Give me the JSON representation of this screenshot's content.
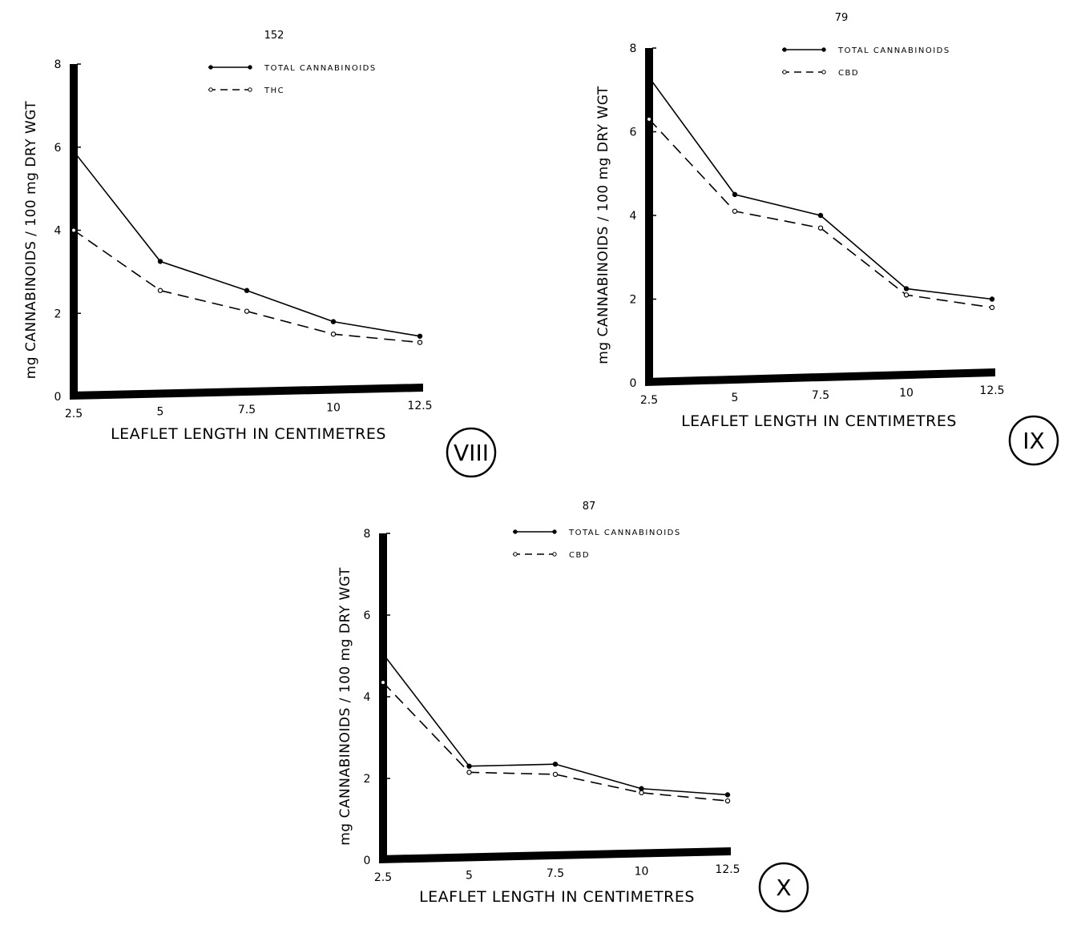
{
  "chart_data": [
    {
      "type": "line",
      "panel": "VIII",
      "sample": "152",
      "ylabel": "mg CANNABINOIDS / 100 mg DRY WGT",
      "xlabel": "LEAFLET LENGTH IN CENTIMETRES",
      "x": [
        2.5,
        5,
        7.5,
        10,
        12.5
      ],
      "x_ticks": [
        "2.5",
        "5",
        "7.5",
        "10",
        "12.5"
      ],
      "y_ticks": [
        "0",
        "2",
        "4",
        "6",
        "8"
      ],
      "ylim": [
        0,
        8
      ],
      "legend_position": "top-center",
      "series": [
        {
          "name": "TOTAL CANNABINOIDS",
          "style": "solid",
          "values": [
            5.9,
            3.25,
            2.55,
            1.8,
            1.45
          ]
        },
        {
          "name": "THC",
          "style": "dashed",
          "values": [
            4.0,
            2.55,
            2.05,
            1.5,
            1.3
          ]
        }
      ]
    },
    {
      "type": "line",
      "panel": "IX",
      "sample": "79",
      "ylabel": "mg CANNABINOIDS / 100 mg DRY WGT",
      "xlabel": "LEAFLET LENGTH IN CENTIMETRES",
      "x": [
        2.5,
        5,
        7.5,
        10,
        12.5
      ],
      "x_ticks": [
        "2.5",
        "5",
        "7.5",
        "10",
        "12.5"
      ],
      "y_ticks": [
        "0",
        "2",
        "4",
        "6",
        "8"
      ],
      "ylim": [
        0,
        8
      ],
      "legend_position": "top-center",
      "series": [
        {
          "name": "TOTAL CANNABINOIDS",
          "style": "solid",
          "values": [
            7.3,
            4.5,
            4.0,
            2.25,
            2.0
          ]
        },
        {
          "name": "CBD",
          "style": "dashed",
          "values": [
            6.3,
            4.1,
            3.7,
            2.1,
            1.8
          ]
        }
      ]
    },
    {
      "type": "line",
      "panel": "X",
      "sample": "87",
      "ylabel": "mg CANNABINOIDS / 100 mg DRY WGT",
      "xlabel": "LEAFLET LENGTH IN CENTIMETRES",
      "x": [
        2.5,
        5,
        7.5,
        10,
        12.5
      ],
      "x_ticks": [
        "2.5",
        "5",
        "7.5",
        "10",
        "12.5"
      ],
      "y_ticks": [
        "0",
        "2",
        "4",
        "6",
        "8"
      ],
      "ylim": [
        0,
        8
      ],
      "legend_position": "top-center",
      "series": [
        {
          "name": "TOTAL CANNABINOIDS",
          "style": "solid",
          "values": [
            5.05,
            2.3,
            2.35,
            1.75,
            1.6
          ]
        },
        {
          "name": "CBD",
          "style": "dashed",
          "values": [
            4.35,
            2.15,
            2.1,
            1.65,
            1.45
          ]
        }
      ]
    }
  ]
}
